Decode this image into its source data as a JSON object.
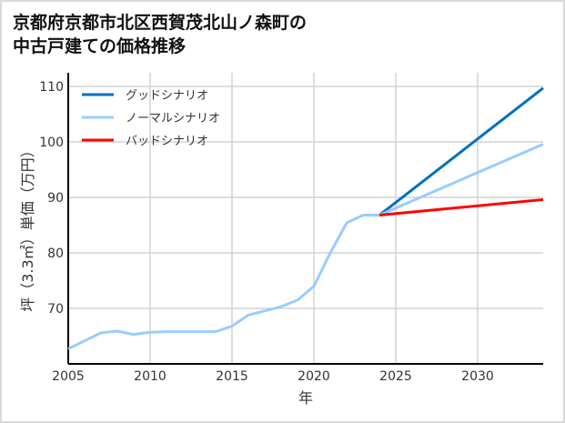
{
  "title_line1": "京都府京都市北区西賀茂北山ノ森町の",
  "title_line2": "中古戸建ての価格推移",
  "chart_data": {
    "type": "line",
    "title": "京都府京都市北区西賀茂北山ノ森町の中古戸建ての価格推移",
    "xlabel": "年",
    "ylabel": "坪（3.3㎡）単価（万円）",
    "xlim": [
      2005,
      2034
    ],
    "ylim": [
      60,
      112
    ],
    "xticks": [
      2005,
      2010,
      2015,
      2020,
      2025,
      2030
    ],
    "yticks": [
      70,
      80,
      90,
      100,
      110
    ],
    "grid": true,
    "legend_position": "upper left",
    "series": [
      {
        "name": "ノーマルシナリオ",
        "color": "#99ccff",
        "x": [
          2005,
          2007,
          2008,
          2009,
          2010,
          2011,
          2014,
          2015,
          2016,
          2018,
          2019,
          2020,
          2021,
          2022,
          2023,
          2024,
          2034
        ],
        "values": [
          62.7,
          65.6,
          65.9,
          65.3,
          65.7,
          65.8,
          65.8,
          66.8,
          68.8,
          70.3,
          71.5,
          74.0,
          80.0,
          85.4,
          86.8,
          86.8,
          99.6
        ]
      },
      {
        "name": "グッドシナリオ",
        "color": "#0070c0",
        "x": [
          2024,
          2034
        ],
        "values": [
          86.8,
          109.7
        ]
      },
      {
        "name": "バッドシナリオ",
        "color": "#ff0000",
        "x": [
          2024,
          2034
        ],
        "values": [
          86.8,
          89.6
        ]
      }
    ]
  },
  "legend": [
    {
      "label": "グッドシナリオ",
      "color": "#0070c0"
    },
    {
      "label": "ノーマルシナリオ",
      "color": "#99ccff"
    },
    {
      "label": "バッドシナリオ",
      "color": "#ff0000"
    }
  ]
}
